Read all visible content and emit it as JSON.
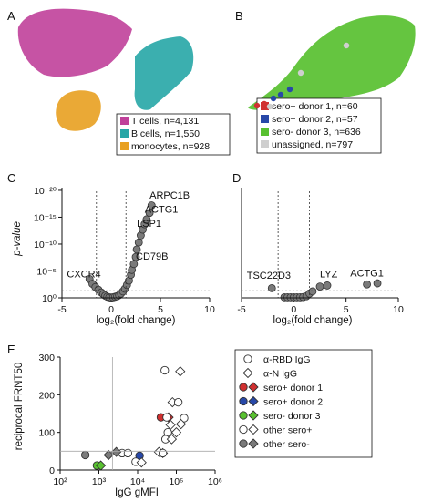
{
  "panels": {
    "a": "A",
    "b": "B",
    "c": "C",
    "d": "D",
    "e": "E"
  },
  "colors": {
    "t": "#c0409a",
    "b": "#26a6a6",
    "mono": "#e8a020",
    "d1": "#d03030",
    "d2": "#2848a8",
    "d3": "#58c030",
    "unassigned": "#cfcfcf",
    "gray": "#7a7a7a",
    "point_edge": "#333333",
    "open_fill": "#ffffff"
  },
  "chart_data": [
    {
      "type": "scatter",
      "name": "umap_cell_types",
      "legend": [
        {
          "label": "T cells, n=4,131",
          "color": "#c0409a"
        },
        {
          "label": "B cells, n=1,550",
          "color": "#26a6a6"
        },
        {
          "label": "monocytes, n=928",
          "color": "#e8a020"
        }
      ],
      "legend_position": "bottom-right"
    },
    {
      "type": "scatter",
      "name": "umap_donors",
      "legend": [
        {
          "label": "sero+ donor 1, n=60",
          "color": "#d03030"
        },
        {
          "label": "sero+ donor 2, n=57",
          "color": "#2848a8"
        },
        {
          "label": "sero- donor 3, n=636",
          "color": "#58c030"
        },
        {
          "label": "unassigned, n=797",
          "color": "#cfcfcf"
        }
      ],
      "legend_position": "bottom-right"
    },
    {
      "type": "scatter",
      "name": "volcano_c",
      "xlabel": "log₂(fold change)",
      "ylabel": "p-value",
      "xlim": [
        -5,
        10
      ],
      "xticks": [
        -5,
        0,
        5,
        10
      ],
      "yticks": [
        {
          "v": 0,
          "label": "10⁰"
        },
        {
          "v": 5,
          "label": "10⁻⁵"
        },
        {
          "v": 10,
          "label": "10⁻¹⁰"
        },
        {
          "v": 15,
          "label": "10⁻¹⁵"
        },
        {
          "v": 20,
          "label": "10⁻²⁰"
        }
      ],
      "ylim": [
        0,
        20.5
      ],
      "vlines": [
        -1.5,
        1.5
      ],
      "hline": 1.3,
      "points": [
        [
          -2.2,
          3.5
        ],
        [
          -1.9,
          2.6
        ],
        [
          -1.6,
          2.0
        ],
        [
          -1.3,
          1.5
        ],
        [
          -1.0,
          1.0
        ],
        [
          -0.8,
          0.7
        ],
        [
          -0.6,
          0.4
        ],
        [
          -0.4,
          0.2
        ],
        [
          -0.2,
          0.1
        ],
        [
          0.0,
          0.05
        ],
        [
          0.2,
          0.1
        ],
        [
          0.4,
          0.2
        ],
        [
          0.6,
          0.3
        ],
        [
          0.8,
          0.5
        ],
        [
          1.0,
          0.8
        ],
        [
          1.2,
          1.2
        ],
        [
          1.4,
          1.7
        ],
        [
          1.6,
          2.4
        ],
        [
          1.8,
          3.2
        ],
        [
          2.0,
          4.3
        ],
        [
          2.1,
          5.2
        ],
        [
          2.3,
          6.3
        ],
        [
          2.5,
          7.6
        ],
        [
          2.6,
          9.0
        ],
        [
          2.8,
          10.3
        ],
        [
          3.0,
          11.6
        ],
        [
          3.2,
          12.7
        ],
        [
          3.4,
          13.7
        ],
        [
          3.6,
          14.6
        ],
        [
          3.9,
          15.8
        ],
        [
          4.1,
          17.2
        ]
      ],
      "annotations": [
        {
          "text": "ARPC1B",
          "x": 3.9,
          "y": 18.5
        },
        {
          "text": "ACTG1",
          "x": 3.4,
          "y": 15.8
        },
        {
          "text": "LSP1",
          "x": 2.6,
          "y": 13.2
        },
        {
          "text": "CD79B",
          "x": 2.5,
          "y": 7.1
        },
        {
          "text": "CXCR4",
          "x": -4.5,
          "y": 3.8
        }
      ]
    },
    {
      "type": "scatter",
      "name": "volcano_d",
      "xlabel": "log₂(fold change)",
      "xlim": [
        -5,
        10
      ],
      "xticks": [
        -5,
        0,
        5,
        10
      ],
      "ylim": [
        0,
        20.5
      ],
      "vlines": [
        -1.5,
        1.5
      ],
      "hline": 1.3,
      "points": [
        [
          -2.1,
          1.8
        ],
        [
          -0.9,
          0.1
        ],
        [
          -0.6,
          0.1
        ],
        [
          -0.3,
          0.1
        ],
        [
          0.0,
          0.1
        ],
        [
          0.3,
          0.1
        ],
        [
          0.6,
          0.1
        ],
        [
          0.9,
          0.15
        ],
        [
          1.2,
          0.3
        ],
        [
          1.5,
          0.8
        ],
        [
          1.8,
          1.2
        ],
        [
          2.5,
          2.1
        ],
        [
          3.2,
          2.3
        ],
        [
          7.0,
          2.5
        ],
        [
          8.0,
          2.7
        ]
      ],
      "annotations": [
        {
          "text": "TSC22D3",
          "x": -4.5,
          "y": 3.6
        },
        {
          "text": "LYZ",
          "x": 2.5,
          "y": 3.8
        },
        {
          "text": "ACTG1",
          "x": 5.4,
          "y": 4.0
        }
      ]
    },
    {
      "type": "scatter",
      "name": "antibody_scatter",
      "xlabel": "IgG gMFI",
      "ylabel": "reciprocal FRNT50",
      "xscale": "log",
      "xlim_log10": [
        2,
        6
      ],
      "xticks": [
        {
          "v": 2,
          "label": "10²"
        },
        {
          "v": 3,
          "label": "10³"
        },
        {
          "v": 4,
          "label": "10⁴"
        },
        {
          "v": 5,
          "label": "10⁵"
        },
        {
          "v": 6,
          "label": "10⁶"
        }
      ],
      "ylim": [
        0,
        300
      ],
      "yticks": [
        0,
        100,
        200,
        300
      ],
      "vline_log10": 3.35,
      "hline": 50,
      "legend": [
        {
          "label": "α-RBD IgG",
          "marker": "circle",
          "fill": "#ffffff"
        },
        {
          "label": "α-N IgG",
          "marker": "diamond",
          "fill": "#ffffff"
        },
        {
          "label": "sero+ donor 1",
          "marker": "pair",
          "fill": "#d03030"
        },
        {
          "label": "sero+ donor 2",
          "marker": "pair",
          "fill": "#2848a8"
        },
        {
          "label": "sero- donor 3",
          "marker": "pair",
          "fill": "#58c030"
        },
        {
          "label": "other sero+",
          "marker": "pair",
          "fill": "#ffffff"
        },
        {
          "label": "other sero-",
          "marker": "pair",
          "fill": "#7a7a7a"
        }
      ],
      "points": [
        {
          "lx": 4.6,
          "y": 140,
          "m": "circle",
          "g": "d1"
        },
        {
          "lx": 4.8,
          "y": 140,
          "m": "diamond",
          "g": "d1"
        },
        {
          "lx": 4.05,
          "y": 38,
          "m": "circle",
          "g": "d2"
        },
        {
          "lx": 4.65,
          "y": 45,
          "m": "diamond",
          "g": "d2"
        },
        {
          "lx": 2.95,
          "y": 12,
          "m": "circle",
          "g": "d3"
        },
        {
          "lx": 3.05,
          "y": 12,
          "m": "diamond",
          "g": "d3"
        },
        {
          "lx": 4.7,
          "y": 265,
          "m": "circle",
          "g": "pos"
        },
        {
          "lx": 5.1,
          "y": 262,
          "m": "diamond",
          "g": "pos"
        },
        {
          "lx": 4.9,
          "y": 180,
          "m": "diamond",
          "g": "pos"
        },
        {
          "lx": 5.05,
          "y": 180,
          "m": "circle",
          "g": "pos"
        },
        {
          "lx": 4.75,
          "y": 140,
          "m": "circle",
          "g": "pos"
        },
        {
          "lx": 5.2,
          "y": 138,
          "m": "circle",
          "g": "pos"
        },
        {
          "lx": 4.85,
          "y": 120,
          "m": "diamond",
          "g": "pos"
        },
        {
          "lx": 5.12,
          "y": 122,
          "m": "diamond",
          "g": "pos"
        },
        {
          "lx": 4.78,
          "y": 100,
          "m": "circle",
          "g": "pos"
        },
        {
          "lx": 5.0,
          "y": 100,
          "m": "diamond",
          "g": "pos"
        },
        {
          "lx": 4.72,
          "y": 82,
          "m": "circle",
          "g": "pos"
        },
        {
          "lx": 4.88,
          "y": 82,
          "m": "diamond",
          "g": "pos"
        },
        {
          "lx": 4.55,
          "y": 48,
          "m": "diamond",
          "g": "pos"
        },
        {
          "lx": 4.65,
          "y": 45,
          "m": "circle",
          "g": "pos"
        },
        {
          "lx": 3.6,
          "y": 45,
          "m": "circle",
          "g": "pos"
        },
        {
          "lx": 3.75,
          "y": 45,
          "m": "circle",
          "g": "pos"
        },
        {
          "lx": 3.95,
          "y": 22,
          "m": "circle",
          "g": "pos"
        },
        {
          "lx": 4.1,
          "y": 20,
          "m": "diamond",
          "g": "pos"
        },
        {
          "lx": 2.65,
          "y": 40,
          "m": "circle",
          "g": "neg"
        },
        {
          "lx": 3.25,
          "y": 40,
          "m": "diamond",
          "g": "neg"
        },
        {
          "lx": 3.45,
          "y": 48,
          "m": "diamond",
          "g": "neg"
        }
      ]
    }
  ]
}
